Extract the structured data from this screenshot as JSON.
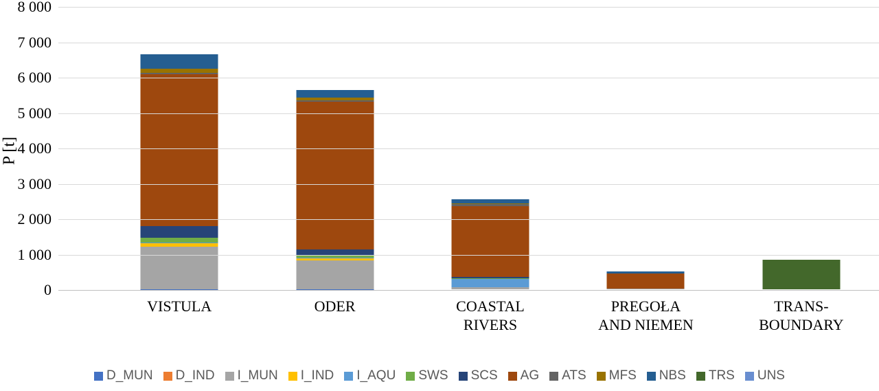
{
  "chart_data": {
    "type": "bar",
    "stacked": true,
    "title": "",
    "xlabel": "",
    "ylabel": "P [t]",
    "ylim": [
      0,
      8000
    ],
    "ytick_step": 1000,
    "yticks": [
      "8 000",
      "7 000",
      "6 000",
      "5 000",
      "4 000",
      "3 000",
      "2 000",
      "1 000",
      "0"
    ],
    "grid": true,
    "legend_position": "bottom",
    "gridline_color": "#d9d9d9",
    "axis_line_color": "#bfbfbf",
    "legend_text_color": "#595959",
    "categories": [
      {
        "id": "vistula",
        "lines": [
          "VISTULA"
        ]
      },
      {
        "id": "oder",
        "lines": [
          "ODER"
        ]
      },
      {
        "id": "coastal-rivers",
        "lines": [
          "COASTAL",
          "RIVERS"
        ]
      },
      {
        "id": "pregola-and-niemen",
        "lines": [
          "PREGOŁA",
          "AND NIEMEN"
        ]
      },
      {
        "id": "trans-boundary",
        "lines": [
          "TRANS-",
          "BOUNDARY"
        ]
      }
    ],
    "series": [
      {
        "name": "D_MUN",
        "color": "#4472C4",
        "values": [
          10,
          10,
          0,
          0,
          0
        ]
      },
      {
        "name": "D_IND",
        "color": "#ED7D31",
        "values": [
          0,
          0,
          0,
          0,
          0
        ]
      },
      {
        "name": "I_MUN",
        "color": "#A5A5A5",
        "values": [
          1200,
          800,
          50,
          20,
          0
        ]
      },
      {
        "name": "I_IND",
        "color": "#FFC000",
        "values": [
          90,
          60,
          10,
          0,
          0
        ]
      },
      {
        "name": "I_AQU",
        "color": "#5B9BD5",
        "values": [
          30,
          20,
          230,
          0,
          0
        ]
      },
      {
        "name": "SWS",
        "color": "#70AD47",
        "values": [
          120,
          90,
          20,
          0,
          0
        ]
      },
      {
        "name": "SCS",
        "color": "#264478",
        "values": [
          330,
          150,
          40,
          0,
          0
        ]
      },
      {
        "name": "AG",
        "color": "#9E480E",
        "values": [
          4300,
          4180,
          2000,
          420,
          0
        ]
      },
      {
        "name": "ATS",
        "color": "#636363",
        "values": [
          40,
          30,
          50,
          10,
          0
        ]
      },
      {
        "name": "MFS",
        "color": "#997300",
        "values": [
          110,
          80,
          30,
          0,
          0
        ]
      },
      {
        "name": "NBS",
        "color": "#255E91",
        "values": [
          420,
          210,
          120,
          50,
          0
        ]
      },
      {
        "name": "TRS",
        "color": "#43682B",
        "values": [
          0,
          0,
          0,
          0,
          840
        ]
      },
      {
        "name": "UNS",
        "color": "#698ED0",
        "values": [
          0,
          0,
          0,
          0,
          0
        ]
      }
    ]
  }
}
